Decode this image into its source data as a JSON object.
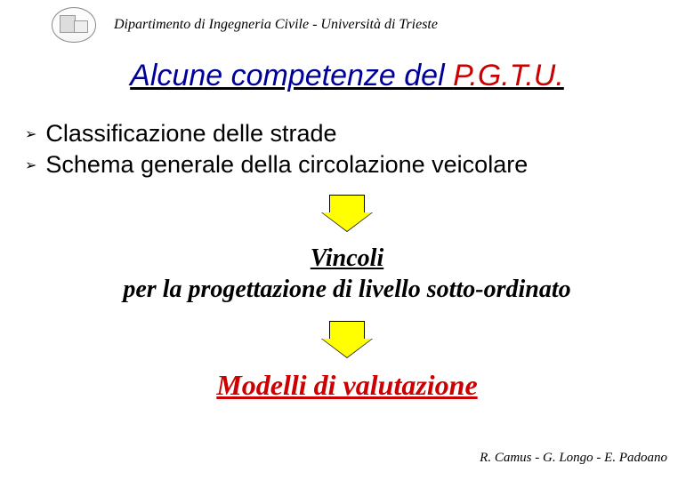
{
  "header": {
    "department": "Dipartimento di Ingegneria Civile - Università di Trieste"
  },
  "title": {
    "prefix": "Alcune competenze del ",
    "highlight": "P.G.T.U.",
    "prefix_color": "#000099",
    "highlight_color": "#cc0000",
    "fontsize": 34
  },
  "bullets": [
    "Classificazione delle strade",
    "Schema generale della circolazione veicolare"
  ],
  "bullet_marker": "➢",
  "arrow": {
    "fill_color": "#ffff00",
    "border_color": "#000000"
  },
  "vincoli": {
    "line1": "Vincoli",
    "line2": "per la progettazione di livello sotto-ordinato",
    "fontsize": 28,
    "color": "#000000"
  },
  "modelli": {
    "text": "Modelli di valutazione",
    "fontsize": 32,
    "color": "#cc0000"
  },
  "footer": {
    "text": "R. Camus - G. Longo - E. Padoano"
  }
}
